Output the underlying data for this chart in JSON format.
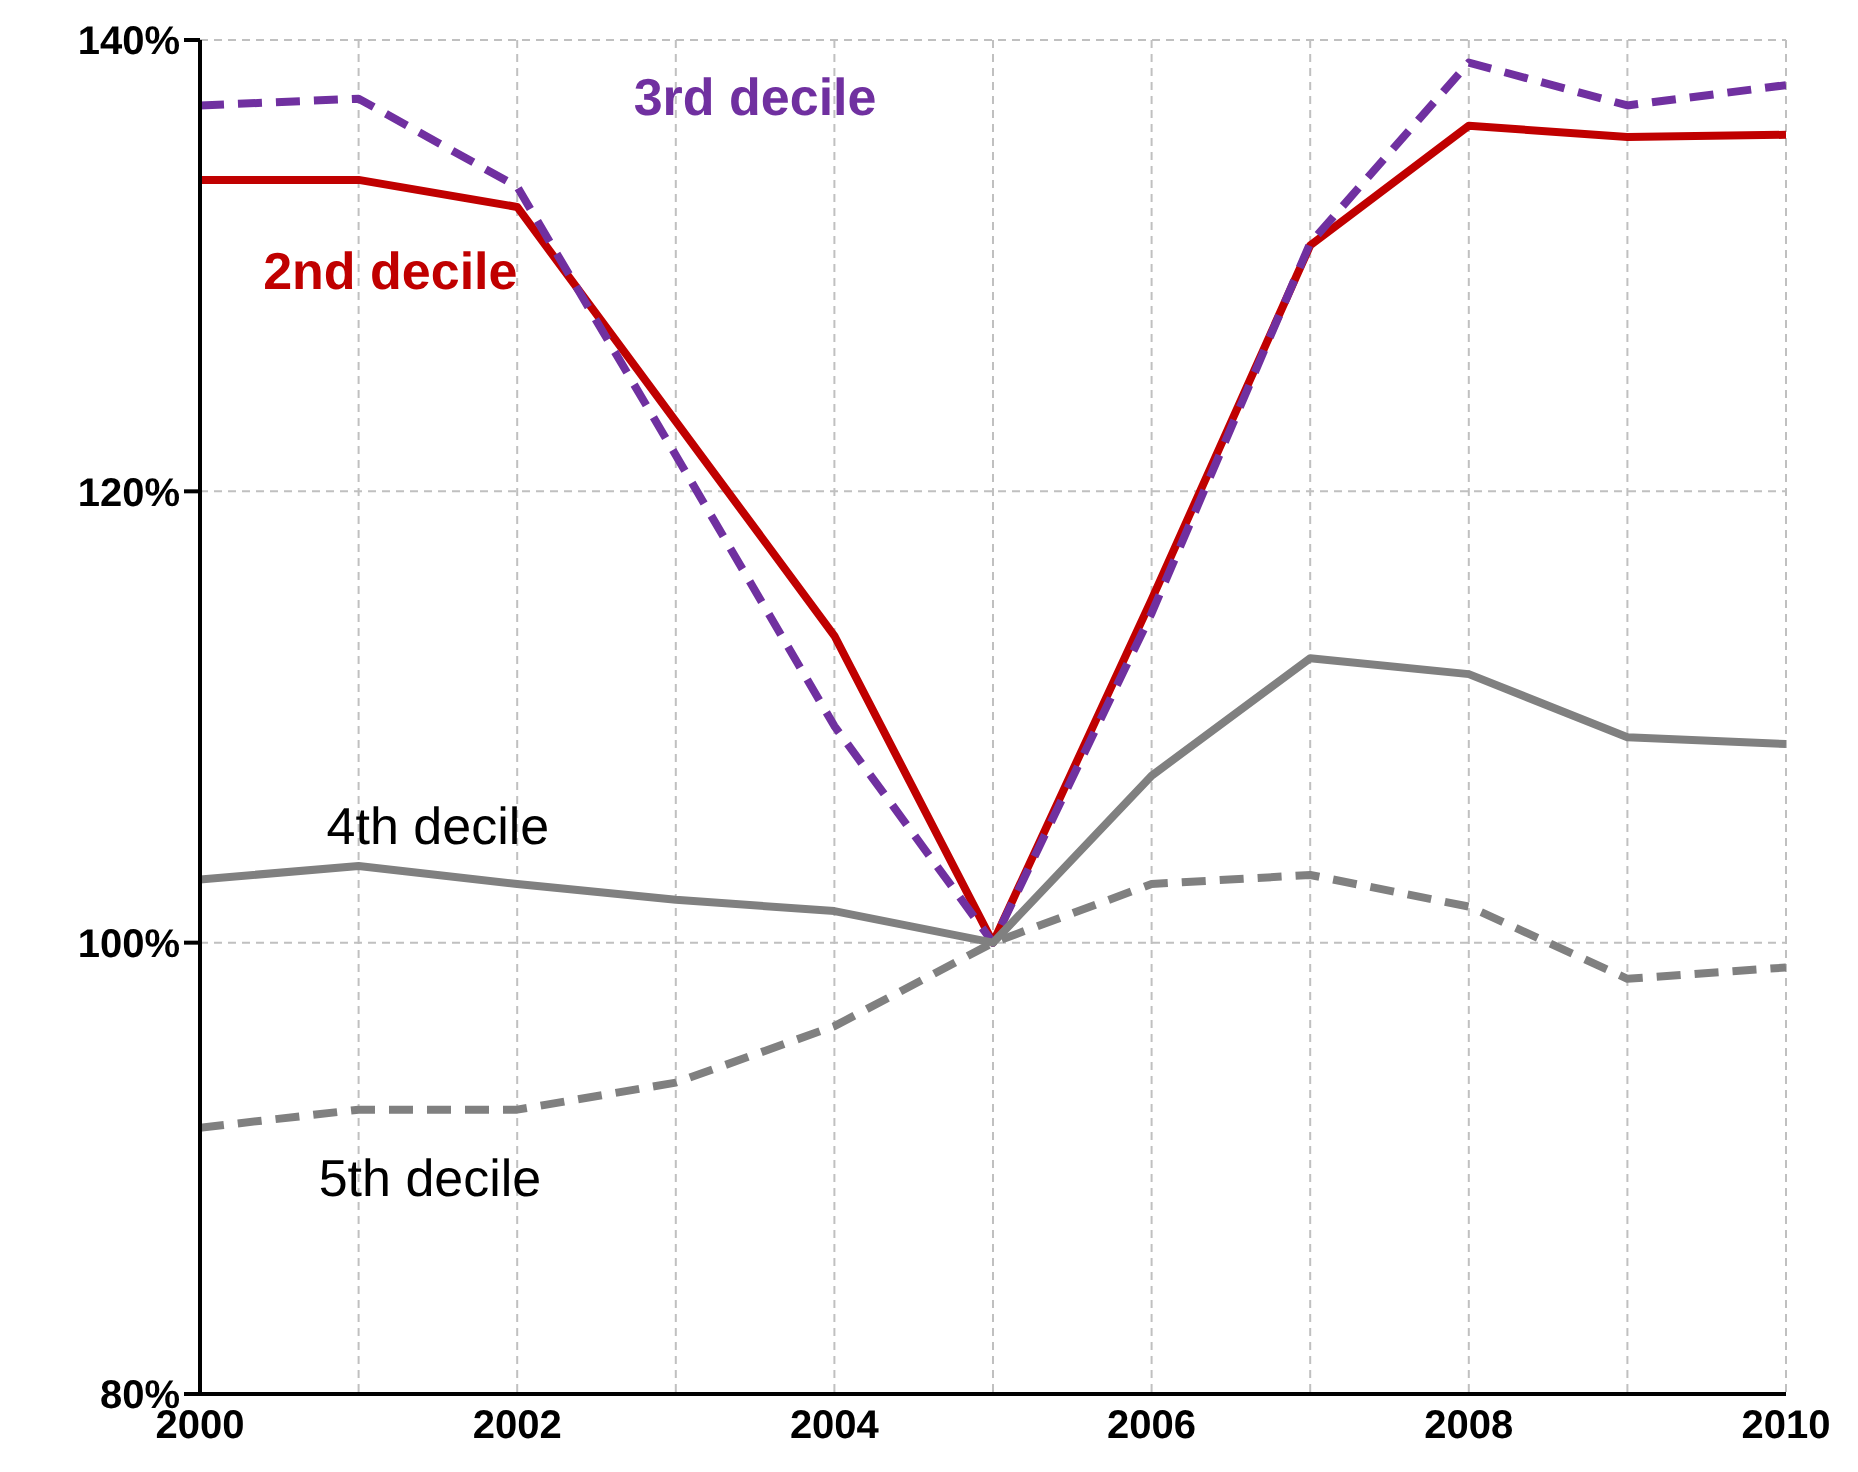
{
  "chart_data": {
    "type": "line",
    "x": [
      2000,
      2001,
      2002,
      2003,
      2004,
      2005,
      2006,
      2007,
      2008,
      2009,
      2010
    ],
    "xlim": [
      2000,
      2010
    ],
    "xticks": [
      2000,
      {
        "value": 2001,
        "label": null
      },
      2002,
      {
        "value": 2003,
        "label": null
      },
      2004,
      {
        "value": 2005,
        "label": null
      },
      2006,
      {
        "value": 2007,
        "label": null
      },
      2008,
      {
        "value": 2009,
        "label": null
      },
      2010
    ],
    "ylim": [
      80,
      140
    ],
    "yticks": [
      {
        "value": 80,
        "label": "80%"
      },
      {
        "value": 100,
        "label": "100%"
      },
      {
        "value": 120,
        "label": "120%"
      },
      {
        "value": 140,
        "label": "140%"
      }
    ],
    "grid": true,
    "marker": "none",
    "series": [
      {
        "name": "2nd decile",
        "color": "#c00000",
        "line_style": "solid",
        "values": [
          133.8,
          133.8,
          132.6,
          123.1,
          113.6,
          100,
          115.2,
          130.9,
          136.2,
          135.7,
          135.8
        ]
      },
      {
        "name": "3rd decile",
        "color": "#7030a0",
        "line_style": "dashed",
        "values": [
          137.1,
          137.4,
          133.5,
          121.6,
          109.6,
          100,
          114.6,
          131.0,
          139.0,
          137.1,
          138.0
        ]
      },
      {
        "name": "4th decile",
        "color": "#808080",
        "line_style": "solid",
        "values": [
          102.8,
          103.4,
          102.6,
          101.9,
          101.4,
          100,
          107.4,
          112.6,
          111.9,
          109.1,
          108.8
        ]
      },
      {
        "name": "5th decile",
        "color": "#808080",
        "line_style": "dashed",
        "values": [
          91.8,
          92.6,
          92.6,
          93.8,
          96.3,
          100,
          102.6,
          103.0,
          101.6,
          98.4,
          98.9
        ]
      }
    ]
  }
}
